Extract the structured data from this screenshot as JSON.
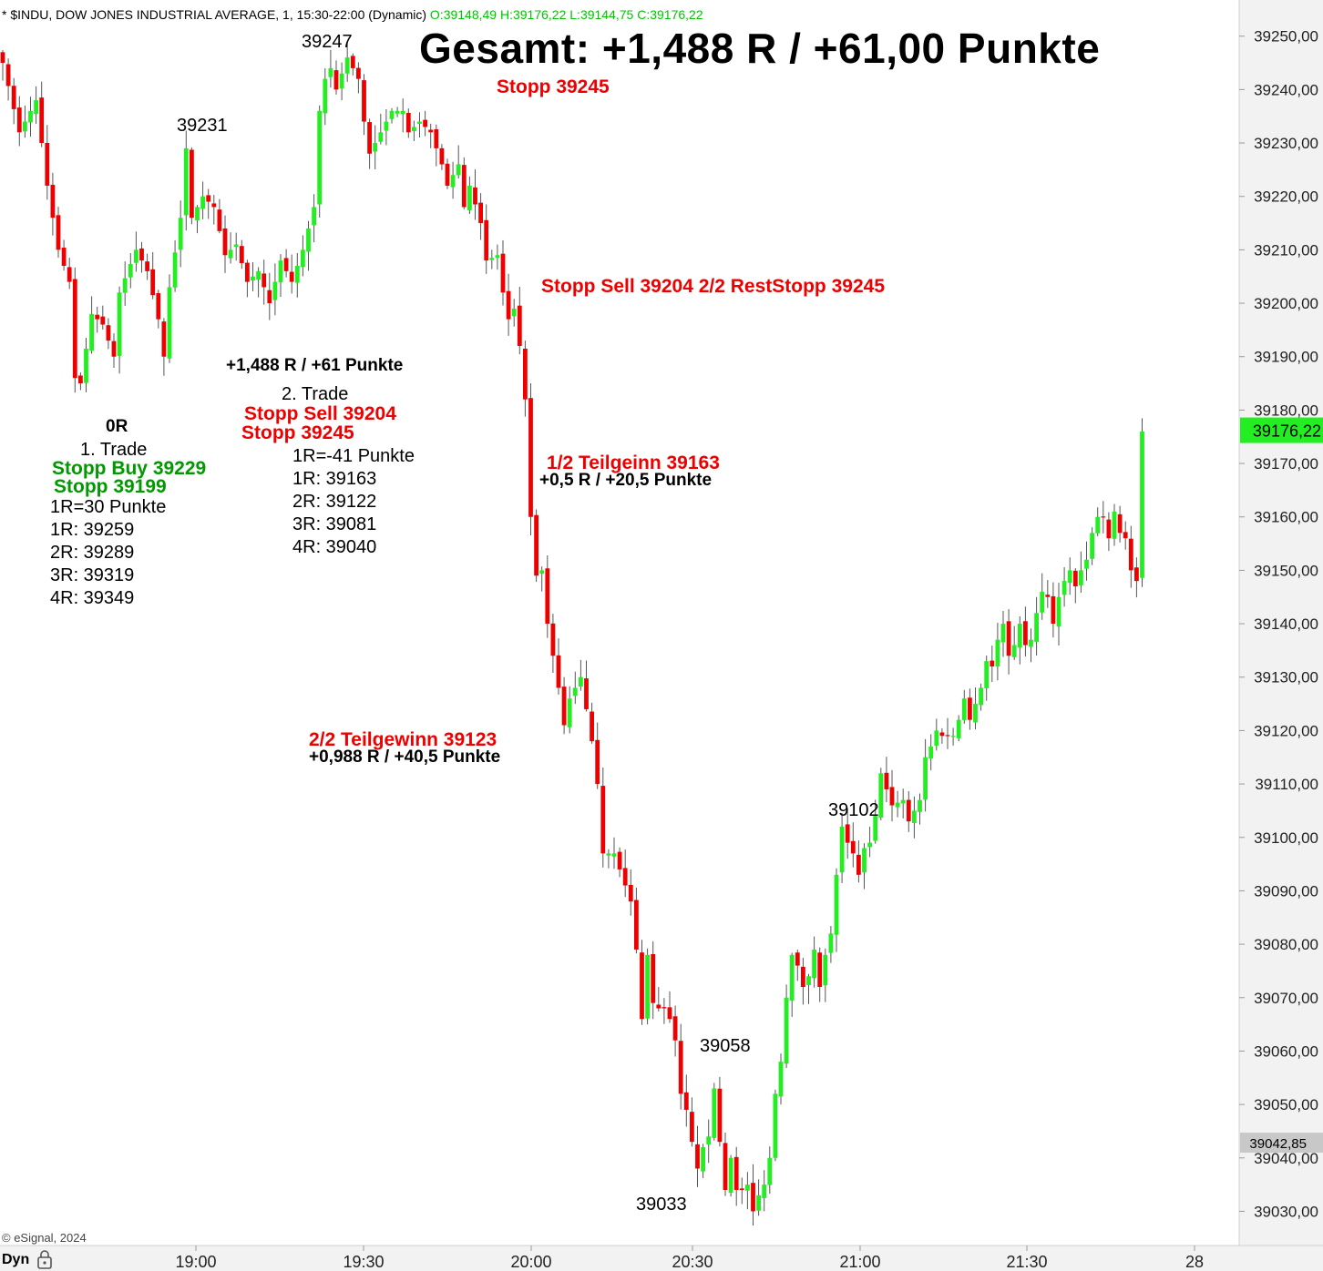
{
  "header": {
    "title": "* $INDU, DOW JONES INDUSTRIAL AVERAGE, 1, 15:30-22:00 (Dynamic)",
    "ohlc": "O:39148,49 H:39176,22 L:39144,75 C:39176,22"
  },
  "annotations": {
    "total": "Gesamt: +1,488 R / +61,00 Punkte",
    "stop_top": "Stopp 39245",
    "stop_sell_rest": "Stopp Sell 39204  2/2 RestStopp 39245",
    "peak_39247": "39247",
    "peak_39231": "39231",
    "sum_r": "+1,488 R / +61 Punkte",
    "trade2_title": "2. Trade",
    "trade2_stop_sell": "Stopp Sell 39204",
    "trade2_stop": "Stopp 39245",
    "trade2_lines": [
      "1R=-41 Punkte",
      "1R: 39163",
      "2R: 39122",
      "3R: 39081",
      "4R: 39040"
    ],
    "zero_r": "0R",
    "trade1_title": "1. Trade",
    "trade1_stop_buy": "Stopp Buy 39229",
    "trade1_stop": "Stopp 39199",
    "trade1_lines": [
      "1R=30 Punkte",
      "1R: 39259",
      "2R: 39289",
      "3R: 39319",
      "4R: 39349"
    ],
    "partial1": "1/2 Teilgeinn 39163",
    "partial1_r": "+0,5 R / +20,5 Punkte",
    "partial2": "2/2 Teilgewinn 39123",
    "partial2_r": "+0,988 R / +40,5 Punkte",
    "low_39058": "39058",
    "low_39033": "39033",
    "high_39102": "39102"
  },
  "footer": {
    "copyright": "© eSignal, 2024",
    "dyn": "Dyn"
  },
  "colors": {
    "up": "#22ee22",
    "down": "#ee0000",
    "last_price_bg": "#22ee22",
    "crosshair_bg": "#c8c8c8"
  },
  "icons": {
    "lock": "lock-icon"
  },
  "chart_data": {
    "type": "candlestick",
    "title": "",
    "ylim": [
      39025,
      39255
    ],
    "yticks": [
      39030,
      39040,
      39050,
      39060,
      39070,
      39080,
      39090,
      39100,
      39110,
      39120,
      39130,
      39140,
      39150,
      39160,
      39170,
      39180,
      39190,
      39200,
      39210,
      39220,
      39230,
      39240,
      39250
    ],
    "x_tick_labels": [
      "19:00",
      "19:30",
      "20:00",
      "20:30",
      "21:00",
      "21:30",
      "28"
    ],
    "last_price_label": "39176,22",
    "crosshair_label": "39042,85",
    "close_path": [
      [
        0,
        39245
      ],
      [
        3,
        39232
      ],
      [
        6,
        39238
      ],
      [
        8,
        39222
      ],
      [
        10,
        39210
      ],
      [
        12,
        39204
      ],
      [
        13,
        39186
      ],
      [
        14,
        39185
      ],
      [
        16,
        39198
      ],
      [
        18,
        39196
      ],
      [
        20,
        39190
      ],
      [
        21,
        39202
      ],
      [
        24,
        39210
      ],
      [
        26,
        39206
      ],
      [
        28,
        39197
      ],
      [
        29,
        39190
      ],
      [
        30,
        39203
      ],
      [
        32,
        39216
      ],
      [
        33,
        39229
      ],
      [
        34,
        39216
      ],
      [
        36,
        39220
      ],
      [
        38,
        39218
      ],
      [
        40,
        39209
      ],
      [
        42,
        39211
      ],
      [
        44,
        39204
      ],
      [
        46,
        39206
      ],
      [
        48,
        39200
      ],
      [
        50,
        39208
      ],
      [
        52,
        39204
      ],
      [
        54,
        39210
      ],
      [
        56,
        39218
      ],
      [
        57,
        39236
      ],
      [
        58,
        39242
      ],
      [
        59,
        39244
      ],
      [
        60,
        39240
      ],
      [
        62,
        39246
      ],
      [
        64,
        39242
      ],
      [
        65,
        39234
      ],
      [
        66,
        39228
      ],
      [
        68,
        39232
      ],
      [
        70,
        39236
      ],
      [
        72,
        39236
      ],
      [
        73,
        39232
      ],
      [
        75,
        39234
      ],
      [
        77,
        39232
      ],
      [
        79,
        39226
      ],
      [
        80,
        39222
      ],
      [
        82,
        39226
      ],
      [
        83,
        39218
      ],
      [
        84,
        39222
      ],
      [
        86,
        39215
      ],
      [
        87,
        39208
      ],
      [
        89,
        39209
      ],
      [
        90,
        39202
      ],
      [
        91,
        39197
      ],
      [
        92,
        39199
      ],
      [
        93,
        39192
      ],
      [
        94,
        39182
      ],
      [
        95,
        39160
      ],
      [
        96,
        39149
      ],
      [
        97,
        39150
      ],
      [
        98,
        39140
      ],
      [
        99,
        39134
      ],
      [
        100,
        39128
      ],
      [
        101,
        39121
      ],
      [
        102,
        39126
      ],
      [
        103,
        39128
      ],
      [
        104,
        39130
      ],
      [
        106,
        39118
      ],
      [
        107,
        39110
      ],
      [
        108,
        39097
      ],
      [
        110,
        39097
      ],
      [
        112,
        39091
      ],
      [
        113,
        39088
      ],
      [
        114,
        39079
      ],
      [
        115,
        39066
      ],
      [
        116,
        39078
      ],
      [
        117,
        39069
      ],
      [
        118,
        39068
      ],
      [
        119,
        39068
      ],
      [
        120,
        39066
      ],
      [
        121,
        39062
      ],
      [
        122,
        39052
      ],
      [
        123,
        39049
      ],
      [
        124,
        39043
      ],
      [
        125,
        39038
      ],
      [
        126,
        39042
      ],
      [
        127,
        39044
      ],
      [
        128,
        39053
      ],
      [
        129,
        39043
      ],
      [
        130,
        39034
      ],
      [
        131,
        39040
      ],
      [
        132,
        39034
      ],
      [
        133,
        39034
      ],
      [
        134,
        39035
      ],
      [
        135,
        39030
      ],
      [
        136,
        39033
      ],
      [
        137,
        39035
      ],
      [
        138,
        39040
      ],
      [
        139,
        39052
      ],
      [
        140,
        39058
      ],
      [
        141,
        39070
      ],
      [
        142,
        39078
      ],
      [
        143,
        39076
      ],
      [
        144,
        39072
      ],
      [
        145,
        39074
      ],
      [
        146,
        39079
      ],
      [
        147,
        39072
      ],
      [
        148,
        39078
      ],
      [
        149,
        39082
      ],
      [
        150,
        39093
      ],
      [
        151,
        39102
      ],
      [
        152,
        39099
      ],
      [
        153,
        39097
      ],
      [
        154,
        39093
      ],
      [
        155,
        39098
      ],
      [
        156,
        39099
      ],
      [
        157,
        39104
      ],
      [
        158,
        39112
      ],
      [
        159,
        39109
      ],
      [
        160,
        39106
      ],
      [
        162,
        39107
      ],
      [
        163,
        39103
      ],
      [
        165,
        39107
      ],
      [
        166,
        39115
      ],
      [
        167,
        39117
      ],
      [
        168,
        39120
      ],
      [
        169,
        39119
      ],
      [
        171,
        39119
      ],
      [
        172,
        39122
      ],
      [
        173,
        39126
      ],
      [
        174,
        39122
      ],
      [
        176,
        39128
      ],
      [
        177,
        39133
      ],
      [
        178,
        39132
      ],
      [
        179,
        39137
      ],
      [
        180,
        39140
      ],
      [
        181,
        39134
      ],
      [
        182,
        39136
      ],
      [
        183,
        39140
      ],
      [
        184,
        39136
      ],
      [
        185,
        39137
      ],
      [
        186,
        39142
      ],
      [
        187,
        39146
      ],
      [
        188,
        39145
      ],
      [
        189,
        39140
      ],
      [
        190,
        39145
      ],
      [
        191,
        39148
      ],
      [
        192,
        39150
      ],
      [
        193,
        39147
      ],
      [
        194,
        39150
      ],
      [
        195,
        39152
      ],
      [
        196,
        39157
      ],
      [
        197,
        39160
      ],
      [
        198,
        39160
      ],
      [
        199,
        39156
      ],
      [
        200,
        39161
      ],
      [
        201,
        39157
      ],
      [
        202,
        39156
      ],
      [
        203,
        39150
      ],
      [
        204,
        39148
      ],
      [
        205,
        39176
      ]
    ]
  }
}
